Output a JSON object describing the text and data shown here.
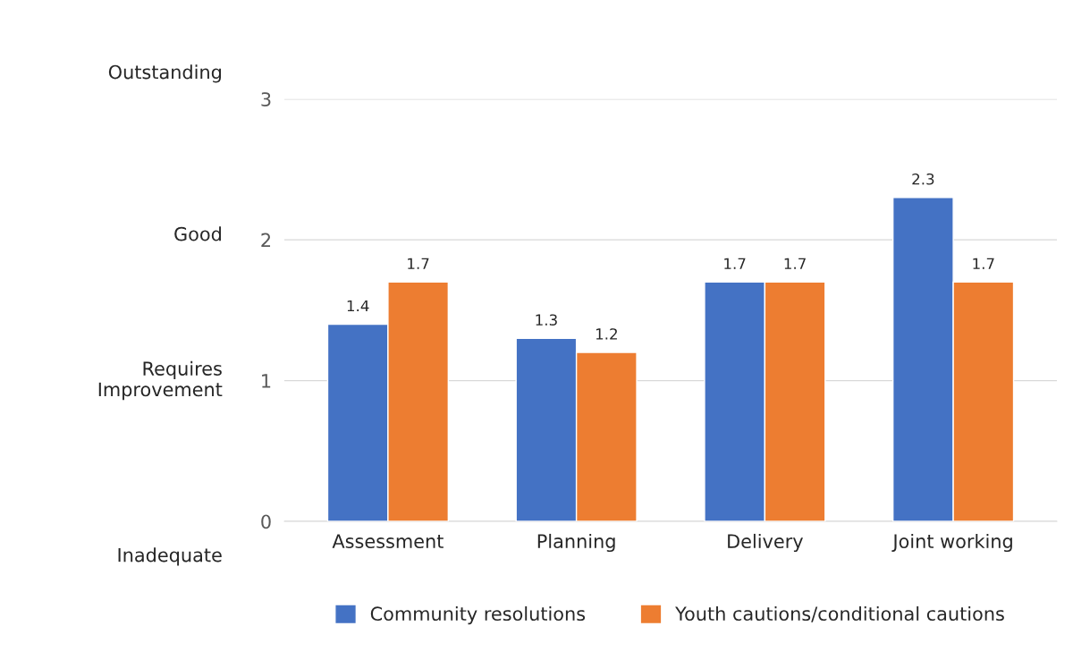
{
  "chart_data": {
    "type": "bar",
    "categories": [
      "Assessment",
      "Planning",
      "Delivery",
      "Joint working"
    ],
    "series": [
      {
        "name": "Community resolutions",
        "color": "#4472c4",
        "values": [
          1.4,
          1.3,
          1.7,
          2.3
        ]
      },
      {
        "name": "Youth cautions/conditional cautions",
        "color": "#ed7d31",
        "values": [
          1.7,
          1.2,
          1.7,
          1.7
        ]
      }
    ],
    "ylim": [
      0,
      3
    ],
    "yticks": [
      0,
      1,
      2,
      3
    ],
    "grid": "y",
    "data_labels": true,
    "legend": "bottom",
    "annotations": [
      "Outstanding",
      "Good",
      "Requires\nImprovement",
      "Inadequate"
    ]
  }
}
